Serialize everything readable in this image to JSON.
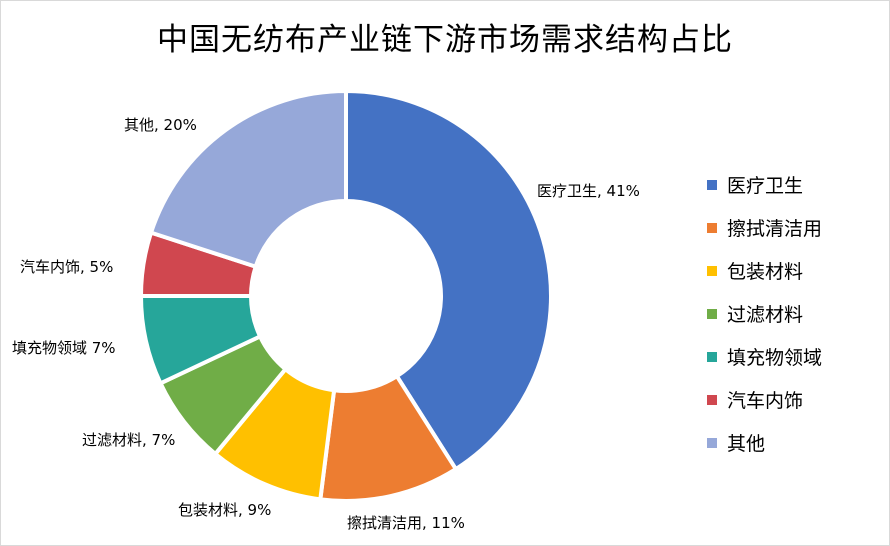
{
  "title": "中国无纺布产业链下游市场需求结构占比",
  "chart_data": {
    "type": "pie",
    "variant": "doughnut",
    "unit": "%",
    "legend_position": "right",
    "slices": [
      {
        "name": "医疗卫生",
        "value": 41,
        "label": "医疗卫生, 41%",
        "color": "#4472C4"
      },
      {
        "name": "擦拭清洁用",
        "value": 11,
        "label": "擦拭清洁用, 11%",
        "color": "#ED7D31"
      },
      {
        "name": "包装材料",
        "value": 9,
        "label": "包装材料, 9%",
        "color": "#FFC000"
      },
      {
        "name": "过滤材料",
        "value": 7,
        "label": "过滤材料, 7%",
        "color": "#70AD47"
      },
      {
        "name": "填充物领域",
        "value": 7,
        "label": "填充物领域 7%",
        "color": "#26A69A"
      },
      {
        "name": "汽车内饰",
        "value": 5,
        "label": "汽车内饰, 5%",
        "color": "#D0474F"
      },
      {
        "name": "其他",
        "value": 20,
        "label": "其他, 20%",
        "color": "#96A8D9"
      }
    ]
  }
}
